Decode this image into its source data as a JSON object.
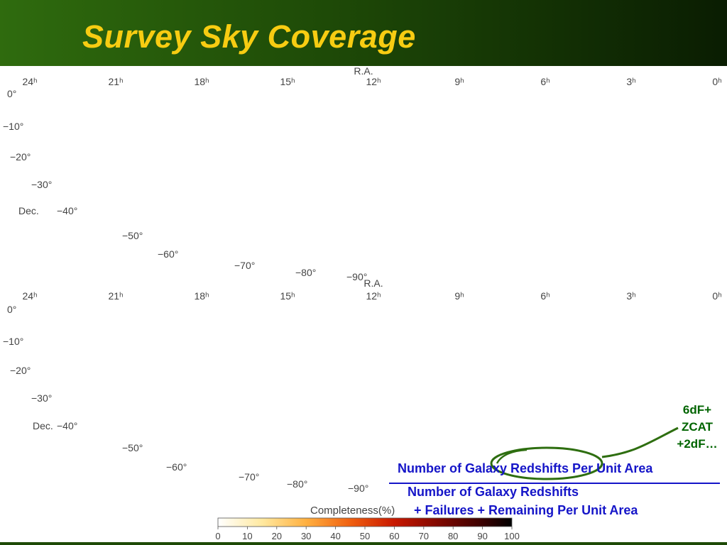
{
  "slide": {
    "title": "Survey Sky Coverage",
    "colors": {
      "header_start": "#2f6b0e",
      "header_end": "#0a1d02",
      "title": "#f7cc12",
      "observed_field": "#44dd11",
      "partial_field": "#f2f06a",
      "fraction": "#1515c8",
      "callout": "#006400"
    }
  },
  "maps": {
    "ra_title": "R.A.",
    "ra_ticks": [
      "24ʰ",
      "21ʰ",
      "18ʰ",
      "15ʰ",
      "12ʰ",
      "9ʰ",
      "6ʰ",
      "3ʰ",
      "0ʰ"
    ],
    "dec_title": "Dec.",
    "dec_ticks": [
      "0°",
      "−10°",
      "−20°",
      "−30°",
      "−40°",
      "−50°",
      "−60°",
      "−70°",
      "−80°",
      "−90°"
    ]
  },
  "annotations": {
    "sources_lines": [
      "6dF+",
      "ZCAT",
      "+2dF…"
    ],
    "numerator": "Number of Galaxy Redshifts Per Unit Area",
    "denominator_line1": "Number of Galaxy Redshifts",
    "denominator_line2": "+ Failures + Remaining Per Unit Area"
  },
  "colorbar": {
    "title": "Completeness(%)",
    "ticks": [
      "0",
      "10",
      "20",
      "30",
      "40",
      "50",
      "60",
      "70",
      "80",
      "90",
      "100"
    ]
  }
}
